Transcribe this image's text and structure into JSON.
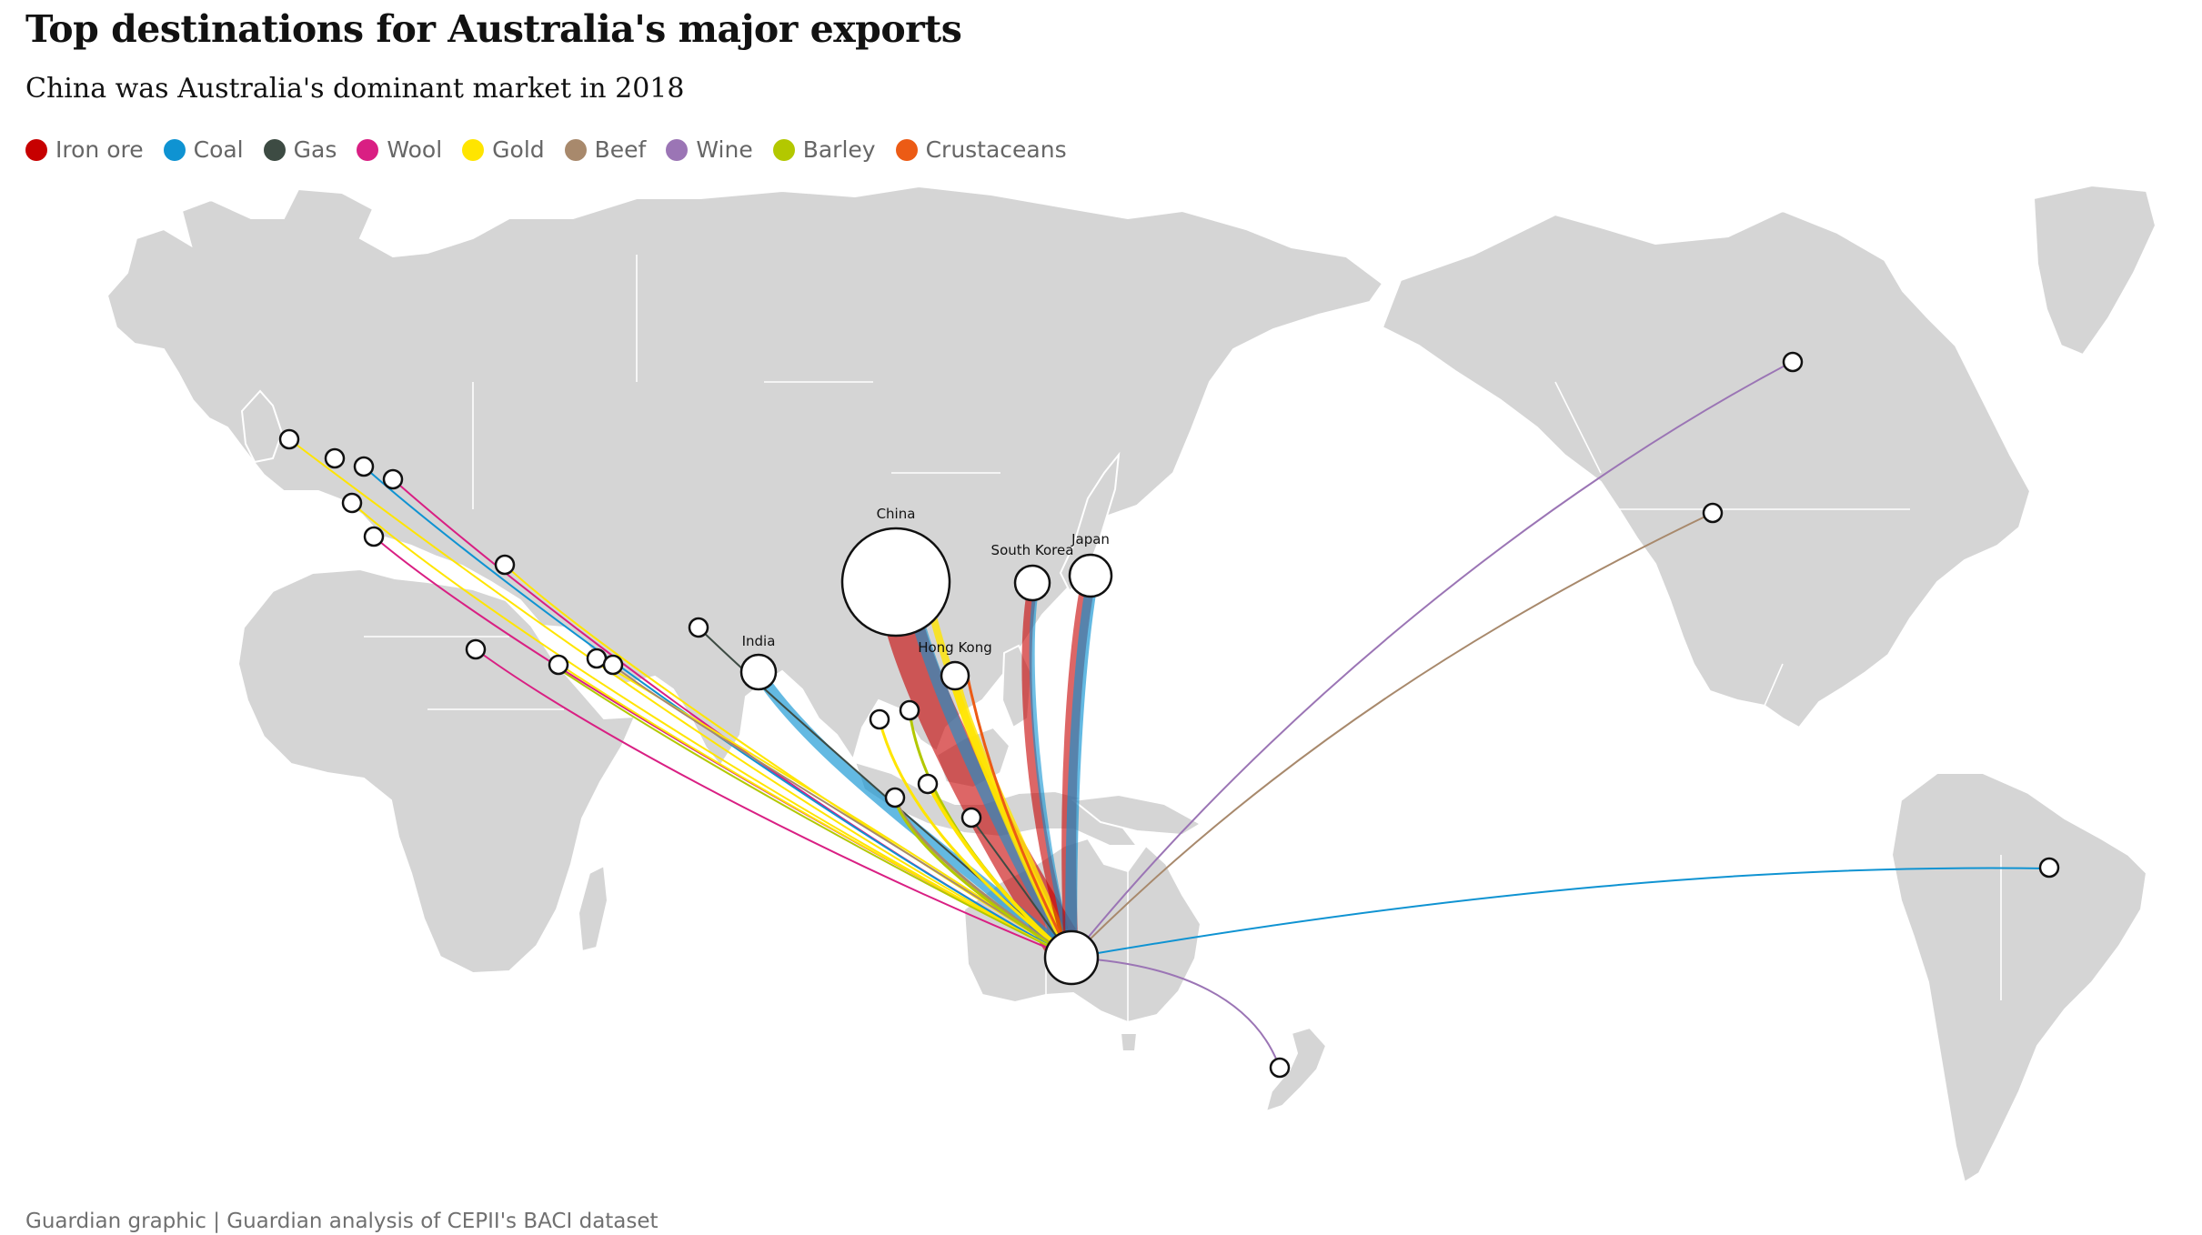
{
  "header": {
    "title": "Top destinations for Australia's major exports",
    "subtitle": "China was Australia's dominant market in 2018"
  },
  "legend": [
    {
      "label": "Iron ore",
      "color": "#c70000"
    },
    {
      "label": "Coal",
      "color": "#0f93d2"
    },
    {
      "label": "Gas",
      "color": "#3d4b43"
    },
    {
      "label": "Wool",
      "color": "#d91f83"
    },
    {
      "label": "Gold",
      "color": "#ffe500"
    },
    {
      "label": "Beef",
      "color": "#a8896c"
    },
    {
      "label": "Wine",
      "color": "#9b75b5"
    },
    {
      "label": "Barley",
      "color": "#b3c800"
    },
    {
      "label": "Crustaceans",
      "color": "#ec5b15"
    }
  ],
  "map_labels": {
    "china": "China",
    "south_korea": "South Korea",
    "japan": "Japan",
    "india": "India",
    "hong_kong": "Hong Kong"
  },
  "footer": {
    "source": "Guardian graphic | Guardian analysis of CEPII's BACI dataset"
  }
}
